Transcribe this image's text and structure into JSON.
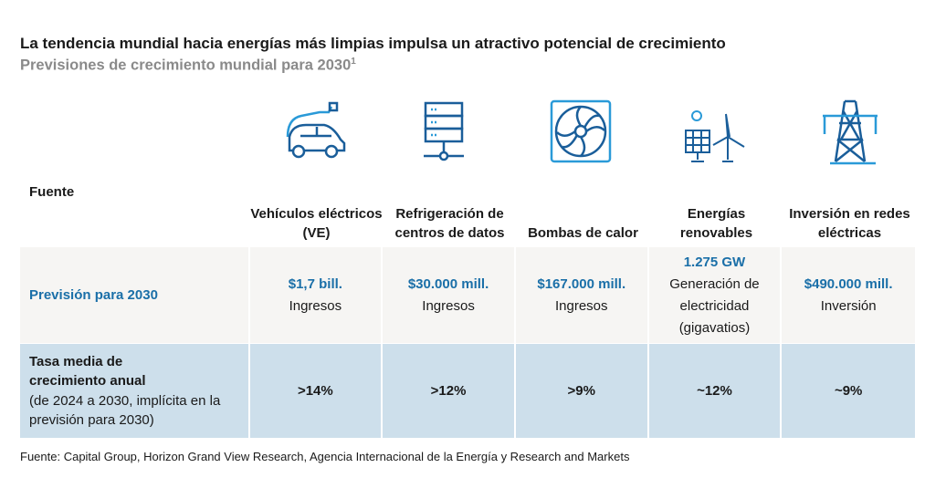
{
  "title": "La tendencia mundial hacia energías más limpias impulsa un atractivo potencial de crecimiento",
  "subtitle": "Previsiones de crecimiento mundial para 2030",
  "subtitle_sup": "1",
  "header_label": "Fuente",
  "columns": [
    {
      "icon": "electric-car-icon",
      "label": "Vehículos eléctricos (VE)",
      "forecast": "$1,7 bill.",
      "forecast_desc": "Ingresos",
      "cagr": ">14%"
    },
    {
      "icon": "server-icon",
      "label": "Refrigeración de centros de datos",
      "forecast": "$30.000 mill.",
      "forecast_desc": "Ingresos",
      "cagr": ">12%"
    },
    {
      "icon": "fan-icon",
      "label": "Bombas de calor",
      "forecast": "$167.000 mill.",
      "forecast_desc": "Ingresos",
      "cagr": ">9%"
    },
    {
      "icon": "solar-wind-icon",
      "label": "Energías renovables",
      "forecast": "1.275 GW",
      "forecast_desc": "Generación de electricidad (gigavatios)",
      "cagr": "~12%"
    },
    {
      "icon": "power-tower-icon",
      "label": "Inversión en redes eléctricas",
      "forecast": "$490.000 mill.",
      "forecast_desc": "Inversión",
      "cagr": "~9%"
    }
  ],
  "row1_label": "Previsión para 2030",
  "row2_label": "Tasa media de crecimiento anual",
  "row2_note": "(de 2024 a 2030, implícita en la previsión para 2030)",
  "footnote": "Fuente: Capital Group, Horizon Grand View Research, Agencia Internacional de la Energía y Research and Markets",
  "colors": {
    "accent": "#1a6fa8",
    "grey_row": "#f6f5f3",
    "blue_row": "#cddfeb"
  }
}
